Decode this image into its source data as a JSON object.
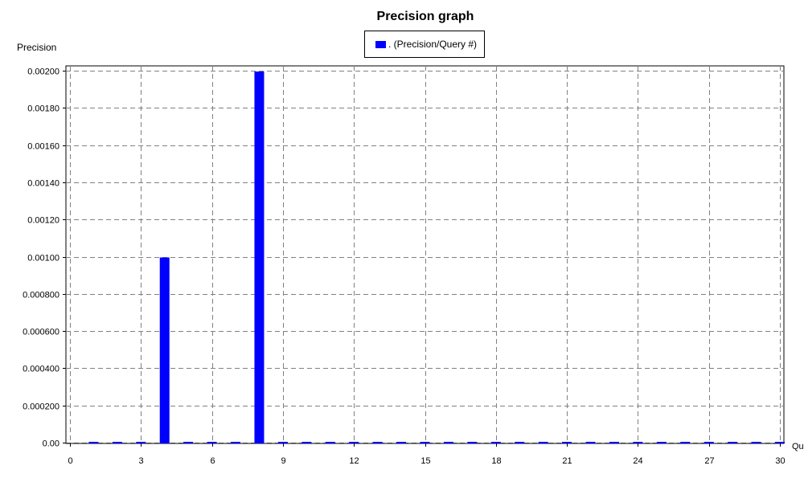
{
  "chart_data": {
    "type": "bar",
    "title": "Precision graph",
    "ylabel": "Precision",
    "xlabel": "Qu",
    "legend": {
      "entries": [
        ". (Precision/Query #)"
      ],
      "placement": "top-center"
    },
    "grid": true,
    "xlim": [
      0,
      30
    ],
    "ylim": [
      0,
      0.002
    ],
    "x_ticks": [
      "0",
      "3",
      "6",
      "9",
      "12",
      "15",
      "18",
      "21",
      "24",
      "27",
      "30"
    ],
    "y_ticks": [
      "0.00",
      "0.000200",
      "0.000400",
      "0.000600",
      "0.000800",
      "0.00100",
      "0.00120",
      "0.00140",
      "0.00160",
      "0.00180",
      "0.00200"
    ],
    "series": [
      {
        "name": ". (Precision/Query #)",
        "color": "#0000ff",
        "x": [
          1,
          2,
          3,
          4,
          5,
          6,
          7,
          8,
          9,
          10,
          11,
          12,
          13,
          14,
          15,
          16,
          17,
          18,
          19,
          20,
          21,
          22,
          23,
          24,
          25,
          26,
          27,
          28,
          29,
          30
        ],
        "values": [
          0,
          0,
          0,
          0.001,
          0,
          0,
          0,
          0.002,
          0,
          0,
          0,
          0,
          0,
          0,
          0,
          0,
          0,
          0,
          0,
          0,
          0,
          0,
          0,
          0,
          0,
          0,
          0,
          0,
          0,
          0
        ]
      }
    ]
  }
}
